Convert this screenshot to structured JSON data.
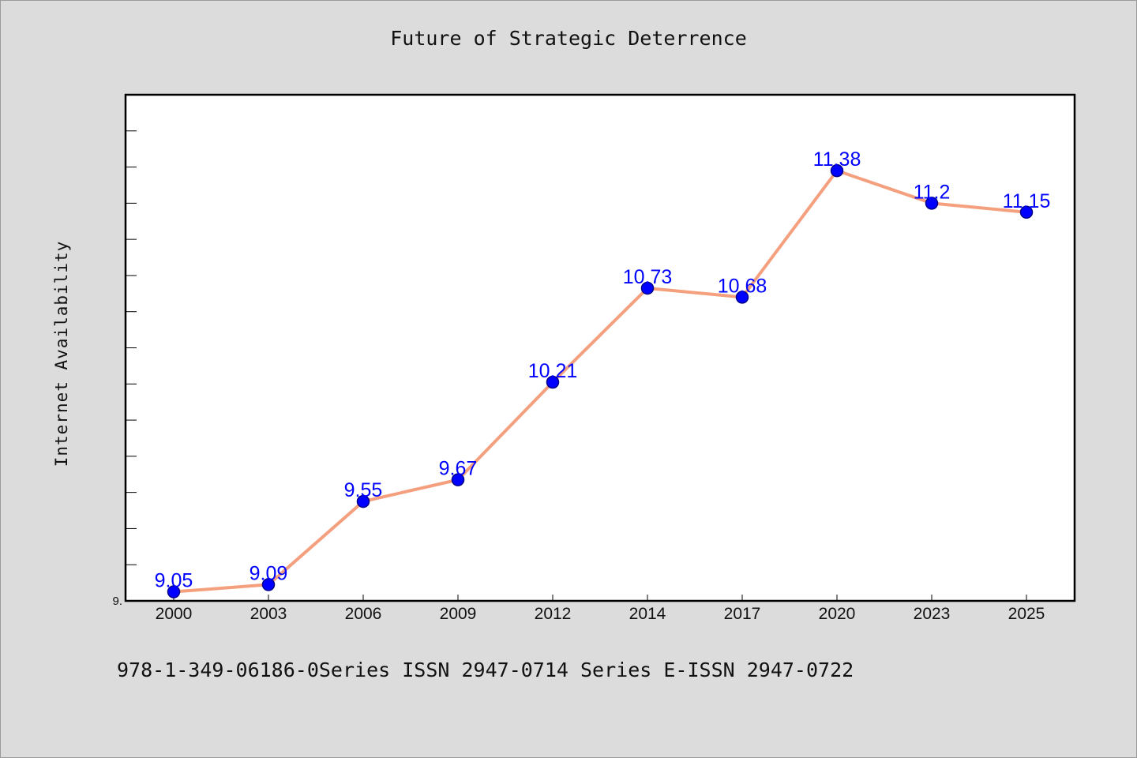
{
  "chart_data": {
    "type": "line",
    "title": "Future of Strategic Deterrence",
    "xlabel": "",
    "ylabel": "Internet Availability",
    "categories": [
      "2000",
      "2003",
      "2006",
      "2009",
      "2012",
      "2014",
      "2017",
      "2020",
      "2023",
      "2025"
    ],
    "series": [
      {
        "values": [
          9.05,
          9.09,
          9.55,
          9.67,
          10.21,
          10.73,
          10.68,
          11.38,
          11.2,
          11.15
        ]
      }
    ],
    "ytick_label": "9.",
    "ylim": [
      9.0,
      11.8
    ],
    "grid": false,
    "data_labels": true,
    "colors": {
      "line": "#f4a07e",
      "marker": "#0000ff",
      "marker_edge": "#00008b",
      "data_label": "#0000ff",
      "background": "#dcdcdc",
      "plot_bg": "#ffffff"
    }
  },
  "footer_text": "978-1-349-06186-0Series ISSN 2947-0714 Series E-ISSN 2947-0722"
}
